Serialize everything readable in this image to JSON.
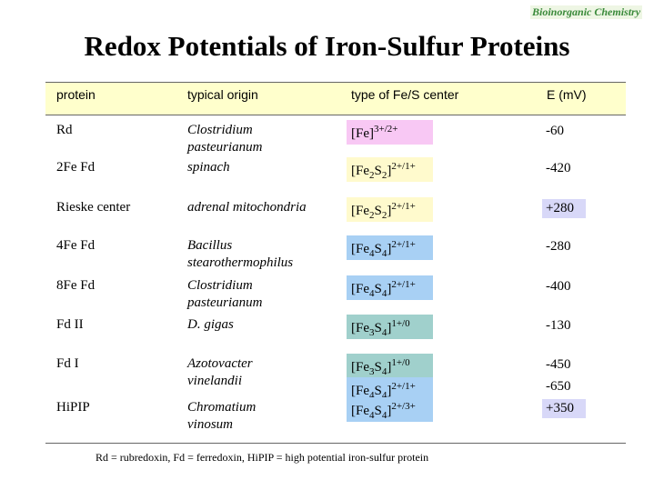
{
  "header": {
    "tag": "Bioinorganic Chemistry",
    "title": "Redox Potentials of Iron-Sulfur Proteins"
  },
  "table": {
    "columns": [
      "protein",
      "typical origin",
      "type of Fe/S center",
      "E (mV)"
    ],
    "rows": [
      {
        "protein": "Rd",
        "origin": [
          "Clostridium",
          "pasteurianum"
        ],
        "center": [
          [
            "[Fe]",
            "3+/2+"
          ]
        ],
        "potential": [
          "-60"
        ]
      },
      {
        "protein": "2Fe Fd",
        "origin": [
          "spinach"
        ],
        "center": [
          [
            "[Fe",
            "2",
            "S",
            "2",
            "]",
            "2+/1+"
          ]
        ],
        "potential": [
          "-420"
        ]
      },
      {
        "protein": "Rieske center",
        "origin": [
          "adrenal mitochondria"
        ],
        "center": [
          [
            "[Fe",
            "2",
            "S",
            "2",
            "]",
            "2+/1+"
          ]
        ],
        "potential": [
          "+280"
        ]
      },
      {
        "protein": "4Fe Fd",
        "origin": [
          "Bacillus",
          "stearothermophilus"
        ],
        "center": [
          [
            "[Fe",
            "4",
            "S",
            "4",
            "]",
            "2+/1+"
          ]
        ],
        "potential": [
          "-280"
        ]
      },
      {
        "protein": "8Fe Fd",
        "origin": [
          "Clostridium",
          "pasteurianum"
        ],
        "center": [
          [
            "[Fe",
            "4",
            "S",
            "4",
            "]",
            "2+/1+"
          ]
        ],
        "potential": [
          "-400"
        ]
      },
      {
        "protein": "Fd II",
        "origin": [
          "D. gigas"
        ],
        "center": [
          [
            "[Fe",
            "3",
            "S",
            "4",
            "]",
            "1+/0"
          ]
        ],
        "potential": [
          "-130"
        ]
      },
      {
        "protein": "Fd I",
        "origin": [
          "Azotovacter",
          "vinelandii"
        ],
        "center": [
          [
            "[Fe",
            "3",
            "S",
            "4",
            "]",
            "1+/0"
          ],
          [
            "[Fe",
            "4",
            "S",
            "4",
            "]",
            "2+/1+"
          ]
        ],
        "potential": [
          "-450",
          "-650"
        ]
      },
      {
        "protein": "HiPIP",
        "origin": [
          "Chromatium",
          "vinosum"
        ],
        "center": [
          [
            "[Fe",
            "4",
            "S",
            "4",
            "]",
            "2+/3+"
          ]
        ],
        "potential": [
          "+350"
        ]
      }
    ]
  },
  "footnote": "Rd = rubredoxin, Fd = ferredoxin, HiPIP = high potential iron-sulfur protein"
}
